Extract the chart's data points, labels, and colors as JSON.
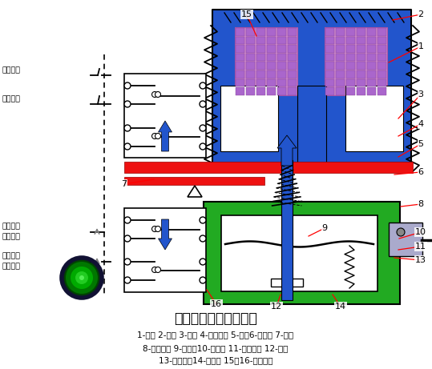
{
  "title": "通电延时型时间继电器",
  "caption_line1": "1-线圈 2-铁心 3-衔铁 4-反力弹簧 5-推板6-活塞杆 7-杠杆",
  "caption_line2": "8-塔形弹簧 9-弱弹簧10-橡皮膜 11-空气室壁 12-活塞",
  "caption_line3": "13-调节螺杆14-进气孔 15、16-微动开关",
  "bg_color": "#ffffff",
  "blue": "#2255cc",
  "green": "#22aa22",
  "red": "#ee1111",
  "purple": "#cc88cc",
  "purple_dark": "#aa66cc"
}
